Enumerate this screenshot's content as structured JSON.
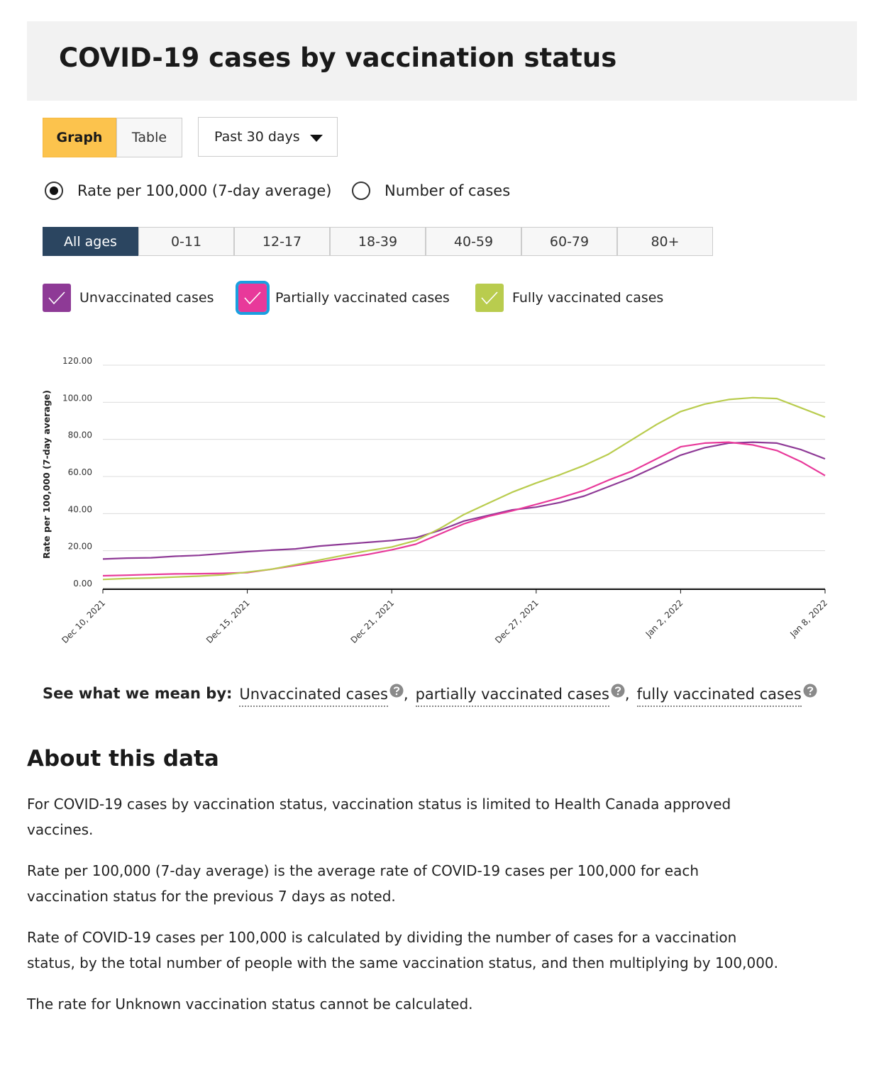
{
  "header": {
    "title": "COVID-19 cases by vaccination status"
  },
  "controls": {
    "view_buttons": [
      "Graph",
      "Table"
    ],
    "period": "Past 30 days",
    "measures": [
      "Rate per 100,000 (7-day average)",
      "Number of cases"
    ],
    "age_groups": [
      "All ages",
      "0-11",
      "12-17",
      "18-39",
      "40-59",
      "60-79",
      "80+"
    ]
  },
  "chart_data": {
    "type": "line",
    "y_label": "Rate per 100,000 (7-day average)",
    "categories": [
      "Dec 10, 2021",
      null,
      null,
      null,
      null,
      null,
      "Dec 15, 2021",
      null,
      null,
      null,
      null,
      null,
      "Dec 21, 2021",
      null,
      null,
      null,
      null,
      null,
      "Dec 27, 2021",
      null,
      null,
      null,
      null,
      null,
      "Jan 2, 2022",
      null,
      null,
      null,
      null,
      null,
      "Jan 8, 2022"
    ],
    "ylim": [
      0,
      120
    ],
    "yticks": [
      {
        "value": 0,
        "label": "0.00"
      },
      {
        "value": 20,
        "label": "20.00"
      },
      {
        "value": 40,
        "label": "40.00"
      },
      {
        "value": 60,
        "label": "60.00"
      },
      {
        "value": 80,
        "label": "80.00"
      },
      {
        "value": 100,
        "label": "100.00"
      },
      {
        "value": 120,
        "label": "120.00"
      }
    ],
    "grid": true,
    "series": [
      {
        "name": "Unvaccinated cases",
        "color": "#8e3a96",
        "values": [
          15.5,
          16,
          16.2,
          17,
          17.5,
          18.5,
          19.5,
          20.3,
          21,
          22.5,
          23.5,
          24.5,
          25.5,
          27,
          31,
          36,
          39,
          42,
          43.5,
          46,
          49.5,
          54.5,
          59.5,
          65.5,
          71.5,
          75.5,
          78,
          78.5,
          78,
          74.5,
          69.5
        ]
      },
      {
        "name": "Partially vaccinated cases",
        "color": "#e8399a",
        "values": [
          6.5,
          6.8,
          7.2,
          7.5,
          7.6,
          7.8,
          8.2,
          10,
          12,
          14,
          16,
          18,
          20.5,
          23.5,
          29,
          34.5,
          38.5,
          41.5,
          45,
          48.5,
          52.5,
          58,
          63,
          69.5,
          76,
          78,
          78.5,
          77,
          74,
          68,
          60.5
        ]
      },
      {
        "name": "Fully vaccinated cases",
        "color": "#b9cc4e",
        "values": [
          4.5,
          5,
          5.3,
          5.8,
          6.3,
          7,
          8.5,
          10,
          12.5,
          15,
          17.5,
          20,
          22,
          25.5,
          32,
          39.5,
          45.5,
          51.5,
          56.5,
          61,
          66,
          72,
          80,
          88,
          95,
          99,
          101.5,
          102.5,
          102,
          97,
          92
        ]
      }
    ]
  },
  "definitions": {
    "label": "See what we mean by:",
    "separator": ",",
    "links": [
      "Unvaccinated cases",
      "partially vaccinated cases",
      "fully vaccinated cases"
    ]
  },
  "about": {
    "title": "About this data",
    "paragraphs": [
      "For COVID-19 cases by vaccination status, vaccination status is limited to Health Canada approved vaccines.",
      "Rate per 100,000 (7-day average) is the average rate of COVID-19 cases per 100,000 for each vaccination status for the previous 7 days as noted.",
      "Rate of COVID-19 cases per 100,000 is calculated by dividing the number of cases for a vaccination status, by the total number of people with the same vaccination status, and then multiplying by 100,000.",
      "The rate for Unknown vaccination status cannot be calculated."
    ]
  }
}
